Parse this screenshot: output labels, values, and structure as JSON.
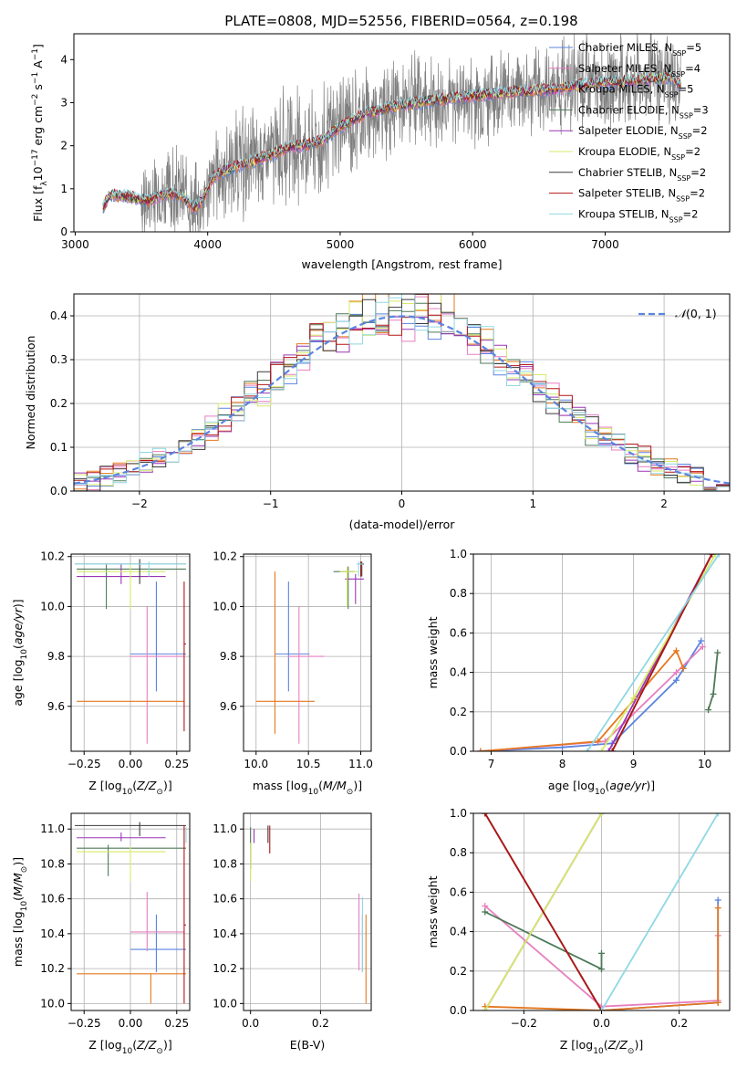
{
  "figure": {
    "title": "PLATE=0808, MJD=52556, FIBERID=0564, z=0.198"
  },
  "colors": {
    "model_1": "#5b84e0",
    "model_2": "#e77fbf",
    "model_3": "#e5781e",
    "model_4": "#4d7a58",
    "model_5": "#9a37b5",
    "model_6": "#d6ea6a",
    "model_7": "#3a3a3a",
    "model_8": "#b21616",
    "model_9": "#8fd8e4",
    "data": "#7f7f7f",
    "grid": "#b0b0b0"
  },
  "legend": [
    {
      "label": "Chabrier MILES, N",
      "sub": "SSP",
      "suffix": "=5",
      "color": "#5b84e0"
    },
    {
      "label": "Salpeter MILES, N",
      "sub": "SSP",
      "suffix": "=4",
      "color": "#e77fbf"
    },
    {
      "label": "Kroupa MILES, N",
      "sub": "SSP",
      "suffix": "=5",
      "color": "#e5781e"
    },
    {
      "label": "Chabrier ELODIE, N",
      "sub": "SSP",
      "suffix": "=3",
      "color": "#4d7a58"
    },
    {
      "label": "Salpeter ELODIE, N",
      "sub": "SSP",
      "suffix": "=2",
      "color": "#9a37b5"
    },
    {
      "label": "Kroupa ELODIE, N",
      "sub": "SSP",
      "suffix": "=2",
      "color": "#d6ea6a"
    },
    {
      "label": "Chabrier STELIB, N",
      "sub": "SSP",
      "suffix": "=2",
      "color": "#3a3a3a"
    },
    {
      "label": "Salpeter STELIB, N",
      "sub": "SSP",
      "suffix": "=2",
      "color": "#b21616"
    },
    {
      "label": "Kroupa STELIB, N",
      "sub": "SSP",
      "suffix": "=2",
      "color": "#8fd8e4"
    }
  ],
  "chart_data": [
    {
      "type": "line",
      "panel": "spectrum",
      "xlabel": "wavelength [Angstrom, rest frame]",
      "ylabel_text": "Flux [f",
      "xlim": [
        2990,
        7940
      ],
      "ylim": [
        0,
        4.6
      ],
      "xticks": [
        3000,
        4000,
        5000,
        6000,
        7000
      ],
      "yticks": [
        0,
        1,
        2,
        3,
        4
      ],
      "continuum": [
        [
          3210,
          0.55
        ],
        [
          3260,
          0.85
        ],
        [
          3400,
          0.82
        ],
        [
          3550,
          0.72
        ],
        [
          3700,
          0.9
        ],
        [
          3800,
          0.85
        ],
        [
          3900,
          0.55
        ],
        [
          3950,
          0.7
        ],
        [
          4050,
          1.3
        ],
        [
          4200,
          1.5
        ],
        [
          4400,
          1.7
        ],
        [
          4600,
          1.95
        ],
        [
          4860,
          2.1
        ],
        [
          5000,
          2.45
        ],
        [
          5200,
          2.75
        ],
        [
          5400,
          2.9
        ],
        [
          5700,
          3.05
        ],
        [
          6000,
          3.15
        ],
        [
          6300,
          3.25
        ],
        [
          6600,
          3.3
        ],
        [
          6900,
          3.45
        ],
        [
          7200,
          3.5
        ],
        [
          7500,
          3.6
        ],
        [
          7570,
          3.4
        ]
      ],
      "grid": false
    },
    {
      "type": "line",
      "panel": "residual-histogram",
      "xlabel": "(data-model)/error",
      "ylabel": "Normed distribution",
      "xlim": [
        -2.5,
        2.5
      ],
      "ylim": [
        0,
        0.45
      ],
      "xticks": [
        -2,
        -1,
        0,
        1,
        2
      ],
      "yticks": [
        0.0,
        0.1,
        0.2,
        0.3,
        0.4
      ],
      "reference_label": "N(0,1)",
      "bin_width": 0.1,
      "grid": true
    },
    {
      "type": "scatter",
      "panel": "age-vs-Z",
      "xlabel": "Z [log10(Z/Z⊙)]",
      "ylabel": "age [log10(age/yr)]",
      "xlim": [
        -0.32,
        0.32
      ],
      "ylim": [
        9.42,
        10.21
      ],
      "xticks": [
        -0.25,
        0.0,
        0.25
      ],
      "yticks": [
        9.6,
        9.8,
        10.0,
        10.2
      ],
      "points": [
        {
          "x": 0.14,
          "y": 9.81,
          "xerr": [
            0.14,
            0.16
          ],
          "yerr": [
            0.15,
            0.29
          ],
          "color": "#5b84e0"
        },
        {
          "x": 0.09,
          "y": 9.8,
          "xerr": [
            0.09,
            0.2
          ],
          "yerr": [
            0.35,
            0.2
          ],
          "color": "#e77fbf"
        },
        {
          "x": 0.1,
          "y": 9.62,
          "xerr": [
            0.39,
            0.19
          ],
          "yerr": [
            0.0,
            0.0
          ],
          "color": "#e5781e"
        },
        {
          "x": -0.13,
          "y": 10.15,
          "xerr": [
            0.16,
            0.43
          ],
          "yerr": [
            0.16,
            0.02
          ],
          "color": "#4d7a58"
        },
        {
          "x": -0.05,
          "y": 10.12,
          "xerr": [
            0.24,
            0.24
          ],
          "yerr": [
            0.03,
            0.05
          ],
          "color": "#9a37b5"
        },
        {
          "x": 0.0,
          "y": 10.14,
          "xerr": [
            0.29,
            0.19
          ],
          "yerr": [
            0.15,
            0.03
          ],
          "color": "#d6ea6a"
        },
        {
          "x": 0.05,
          "y": 10.17,
          "xerr": [
            0.35,
            0.25
          ],
          "yerr": [
            0.08,
            0.02
          ],
          "color": "#3a3a3a"
        },
        {
          "x": 0.29,
          "y": 9.85,
          "xerr": [
            0.0,
            0.01
          ],
          "yerr": [
            0.35,
            0.25
          ],
          "color": "#b21616"
        },
        {
          "x": 0.1,
          "y": 10.17,
          "xerr": [
            0.4,
            0.2
          ],
          "yerr": [
            0.05,
            0.01
          ],
          "color": "#8fd8e4"
        }
      ]
    },
    {
      "type": "scatter",
      "panel": "age-vs-mass",
      "xlabel": "mass [log10(M/M⊙)]",
      "xlim": [
        9.88,
        11.1
      ],
      "ylim": [
        9.42,
        10.21
      ],
      "xticks": [
        10.0,
        10.5,
        11.0
      ],
      "yticks": [
        9.6,
        9.8,
        10.0,
        10.2
      ],
      "points": [
        {
          "x": 10.31,
          "y": 9.81,
          "xerr": [
            0.13,
            0.2
          ],
          "yerr": [
            0.15,
            0.29
          ],
          "color": "#5b84e0"
        },
        {
          "x": 10.41,
          "y": 9.8,
          "xerr": [
            0.11,
            0.24
          ],
          "yerr": [
            0.35,
            0.2
          ],
          "color": "#e77fbf"
        },
        {
          "x": 10.18,
          "y": 9.62,
          "xerr": [
            0.18,
            0.38
          ],
          "yerr": [
            0.13,
            0.52
          ],
          "color": "#e5781e"
        },
        {
          "x": 10.88,
          "y": 10.14,
          "xerr": [
            0.14,
            0.06
          ],
          "yerr": [
            0.15,
            0.02
          ],
          "color": "#4d7a58"
        },
        {
          "x": 10.95,
          "y": 10.11,
          "xerr": [
            0.1,
            0.08
          ],
          "yerr": [
            0.1,
            0.02
          ],
          "color": "#9a37b5"
        },
        {
          "x": 10.87,
          "y": 10.14,
          "xerr": [
            0.07,
            0.1
          ],
          "yerr": [
            0.14,
            0.02
          ],
          "color": "#d6ea6a"
        },
        {
          "x": 11.01,
          "y": 10.17,
          "xerr": [
            0.02,
            0.02
          ],
          "yerr": [
            0.05,
            0.01
          ],
          "color": "#3a3a3a"
        },
        {
          "x": 11.0,
          "y": 10.17,
          "xerr": [
            0.02,
            0.02
          ],
          "yerr": [
            0.05,
            0.01
          ],
          "color": "#b21616"
        },
        {
          "x": 10.98,
          "y": 10.17,
          "xerr": [
            0.02,
            0.04
          ],
          "yerr": [
            0.05,
            0.01
          ],
          "color": "#8fd8e4"
        }
      ]
    },
    {
      "type": "line",
      "panel": "mass-weight-vs-age",
      "xlabel": "age [log10(age/yr)]",
      "ylabel": "mass weight",
      "xlim": [
        6.75,
        10.35
      ],
      "ylim": [
        0,
        1.0
      ],
      "xticks": [
        7,
        8,
        9,
        10
      ],
      "yticks": [
        0.0,
        0.2,
        0.4,
        0.6,
        0.8,
        1.0
      ],
      "series": [
        {
          "color": "#5b84e0",
          "points": [
            [
              6.85,
              0
            ],
            [
              8.0,
              0.02
            ],
            [
              8.7,
              0.04
            ],
            [
              9.6,
              0.36
            ],
            [
              9.95,
              0.56
            ]
          ]
        },
        {
          "color": "#e77fbf",
          "points": [
            [
              6.85,
              0
            ],
            [
              8.6,
              0.05
            ],
            [
              9.6,
              0.4
            ],
            [
              9.97,
              0.53
            ]
          ]
        },
        {
          "color": "#e5781e",
          "points": [
            [
              6.85,
              0
            ],
            [
              8.5,
              0.05
            ],
            [
              9.6,
              0.51
            ],
            [
              9.7,
              0.42
            ]
          ]
        },
        {
          "color": "#4d7a58",
          "points": [
            [
              10.05,
              0.21
            ],
            [
              10.12,
              0.29
            ],
            [
              10.18,
              0.5
            ]
          ]
        },
        {
          "color": "#9a37b5",
          "points": [
            [
              8.65,
              0
            ],
            [
              10.1,
              1.0
            ]
          ]
        },
        {
          "color": "#d6ea6a",
          "points": [
            [
              8.55,
              0
            ],
            [
              9.0,
              0.27
            ],
            [
              10.15,
              1.0
            ]
          ]
        },
        {
          "color": "#3a3a3a",
          "points": [
            [
              8.7,
              0
            ],
            [
              10.1,
              1.0
            ]
          ]
        },
        {
          "color": "#b21616",
          "points": [
            [
              8.7,
              0
            ],
            [
              10.1,
              1.0
            ]
          ]
        },
        {
          "color": "#8fd8e4",
          "points": [
            [
              8.35,
              0
            ],
            [
              10.2,
              1.0
            ]
          ]
        }
      ],
      "grid": true
    },
    {
      "type": "scatter",
      "panel": "mass-vs-Z",
      "xlabel": "Z [log10(Z/Z⊙)]",
      "ylabel": "mass [log10(M/M⊙)]",
      "xlim": [
        -0.32,
        0.32
      ],
      "ylim": [
        9.96,
        11.09
      ],
      "xticks": [
        -0.25,
        0.0,
        0.25
      ],
      "yticks": [
        10.0,
        10.2,
        10.4,
        10.6,
        10.8,
        11.0
      ],
      "points": [
        {
          "x": 0.14,
          "y": 10.31,
          "xerr": [
            0.14,
            0.16
          ],
          "yerr": [
            0.13,
            0.2
          ],
          "color": "#5b84e0"
        },
        {
          "x": 0.09,
          "y": 10.41,
          "xerr": [
            0.09,
            0.2
          ],
          "yerr": [
            0.11,
            0.23
          ],
          "color": "#e77fbf"
        },
        {
          "x": 0.11,
          "y": 10.17,
          "xerr": [
            0.4,
            0.19
          ],
          "yerr": [
            0.17,
            0.0
          ],
          "color": "#e5781e"
        },
        {
          "x": -0.12,
          "y": 10.89,
          "xerr": [
            0.17,
            0.42
          ],
          "yerr": [
            0.16,
            0.02
          ],
          "color": "#4d7a58"
        },
        {
          "x": -0.05,
          "y": 10.95,
          "xerr": [
            0.24,
            0.24
          ],
          "yerr": [
            0.02,
            0.03
          ],
          "color": "#9a37b5"
        },
        {
          "x": 0.0,
          "y": 10.87,
          "xerr": [
            0.29,
            0.19
          ],
          "yerr": [
            0.17,
            0.03
          ],
          "color": "#d6ea6a"
        },
        {
          "x": 0.05,
          "y": 11.02,
          "xerr": [
            0.35,
            0.25
          ],
          "yerr": [
            0.06,
            0.02
          ],
          "color": "#3a3a3a"
        },
        {
          "x": 0.29,
          "y": 10.45,
          "xerr": [
            0.0,
            0.01
          ],
          "yerr": [
            0.45,
            0.57
          ],
          "color": "#b21616"
        },
        {
          "x": 0.3,
          "y": 10.98,
          "xerr": [
            0.0,
            0.0
          ],
          "yerr": [
            0.06,
            0.03
          ],
          "color": "#8fd8e4"
        }
      ]
    },
    {
      "type": "scatter",
      "panel": "mass-vs-EBV",
      "xlabel": "E(B-V)",
      "xlim": [
        -0.02,
        0.345
      ],
      "ylim": [
        9.96,
        11.09
      ],
      "xticks": [
        0.0,
        0.2
      ],
      "yticks": [
        10.0,
        10.2,
        10.4,
        10.6,
        10.8,
        11.0
      ],
      "points": [
        {
          "x": 0.32,
          "y": 10.31,
          "xerr": [
            0,
            0
          ],
          "yerr": [
            0.13,
            0.2
          ],
          "color": "#5b84e0"
        },
        {
          "x": 0.31,
          "y": 10.41,
          "xerr": [
            0,
            0
          ],
          "yerr": [
            0.22,
            0.22
          ],
          "color": "#e77fbf"
        },
        {
          "x": 0.33,
          "y": 10.17,
          "xerr": [
            0,
            0
          ],
          "yerr": [
            0.17,
            0.34
          ],
          "color": "#e5781e"
        },
        {
          "x": 0.0,
          "y": 10.89,
          "xerr": [
            0,
            0
          ],
          "yerr": [
            0.12,
            0.12
          ],
          "color": "#4d7a58"
        },
        {
          "x": 0.01,
          "y": 10.95,
          "xerr": [
            0,
            0
          ],
          "yerr": [
            0.03,
            0.05
          ],
          "color": "#9a37b5"
        },
        {
          "x": 0.0,
          "y": 10.87,
          "xerr": [
            0,
            0
          ],
          "yerr": [
            0.17,
            0.05
          ],
          "color": "#d6ea6a"
        },
        {
          "x": 0.05,
          "y": 10.97,
          "xerr": [
            0,
            0
          ],
          "yerr": [
            0.05,
            0.05
          ],
          "color": "#3a3a3a"
        },
        {
          "x": 0.055,
          "y": 10.96,
          "xerr": [
            0,
            0
          ],
          "yerr": [
            0.1,
            0.06
          ],
          "color": "#b21616"
        },
        {
          "x": 0.32,
          "y": 10.37,
          "xerr": [
            0,
            0
          ],
          "yerr": [
            0.19,
            0.24
          ],
          "color": "#8fd8e4"
        }
      ]
    },
    {
      "type": "line",
      "panel": "mass-weight-vs-Z",
      "xlabel": "Z [log10(Z/Z⊙)]",
      "ylabel": "mass weight",
      "xlim": [
        -0.33,
        0.33
      ],
      "ylim": [
        0,
        1.0
      ],
      "xticks": [
        -0.2,
        0.0,
        0.2
      ],
      "yticks": [
        0.0,
        0.2,
        0.4,
        0.6,
        0.8,
        1.0
      ],
      "series": [
        {
          "color": "#5b84e0",
          "points": [
            [
              0.0,
              0
            ],
            [
              0.3,
              0.04
            ],
            [
              0.3,
              0.56
            ]
          ]
        },
        {
          "color": "#e77fbf",
          "points": [
            [
              -0.3,
              0.53
            ],
            [
              0.0,
              0.02
            ],
            [
              0.3,
              0.05
            ],
            [
              0.3,
              0.38
            ]
          ]
        },
        {
          "color": "#e5781e",
          "points": [
            [
              -0.3,
              0.02
            ],
            [
              0.0,
              0.0
            ],
            [
              0.3,
              0.04
            ],
            [
              0.3,
              0.52
            ]
          ]
        },
        {
          "color": "#4d7a58",
          "points": [
            [
              -0.3,
              0.5
            ],
            [
              0.0,
              0.21
            ],
            [
              0.0,
              0.29
            ]
          ]
        },
        {
          "color": "#9a37b5",
          "points": [
            [
              -0.3,
              0
            ],
            [
              0.0,
              1.0
            ]
          ]
        },
        {
          "color": "#d6ea6a",
          "points": [
            [
              -0.3,
              0
            ],
            [
              0.0,
              1.0
            ]
          ]
        },
        {
          "color": "#3a3a3a",
          "points": [
            [
              -0.3,
              1.0
            ],
            [
              0.0,
              0
            ]
          ]
        },
        {
          "color": "#b21616",
          "points": [
            [
              -0.3,
              1.0
            ],
            [
              0.0,
              0
            ]
          ]
        },
        {
          "color": "#8fd8e4",
          "points": [
            [
              0.0,
              0
            ],
            [
              0.3,
              1.0
            ]
          ]
        }
      ],
      "grid": true
    }
  ]
}
